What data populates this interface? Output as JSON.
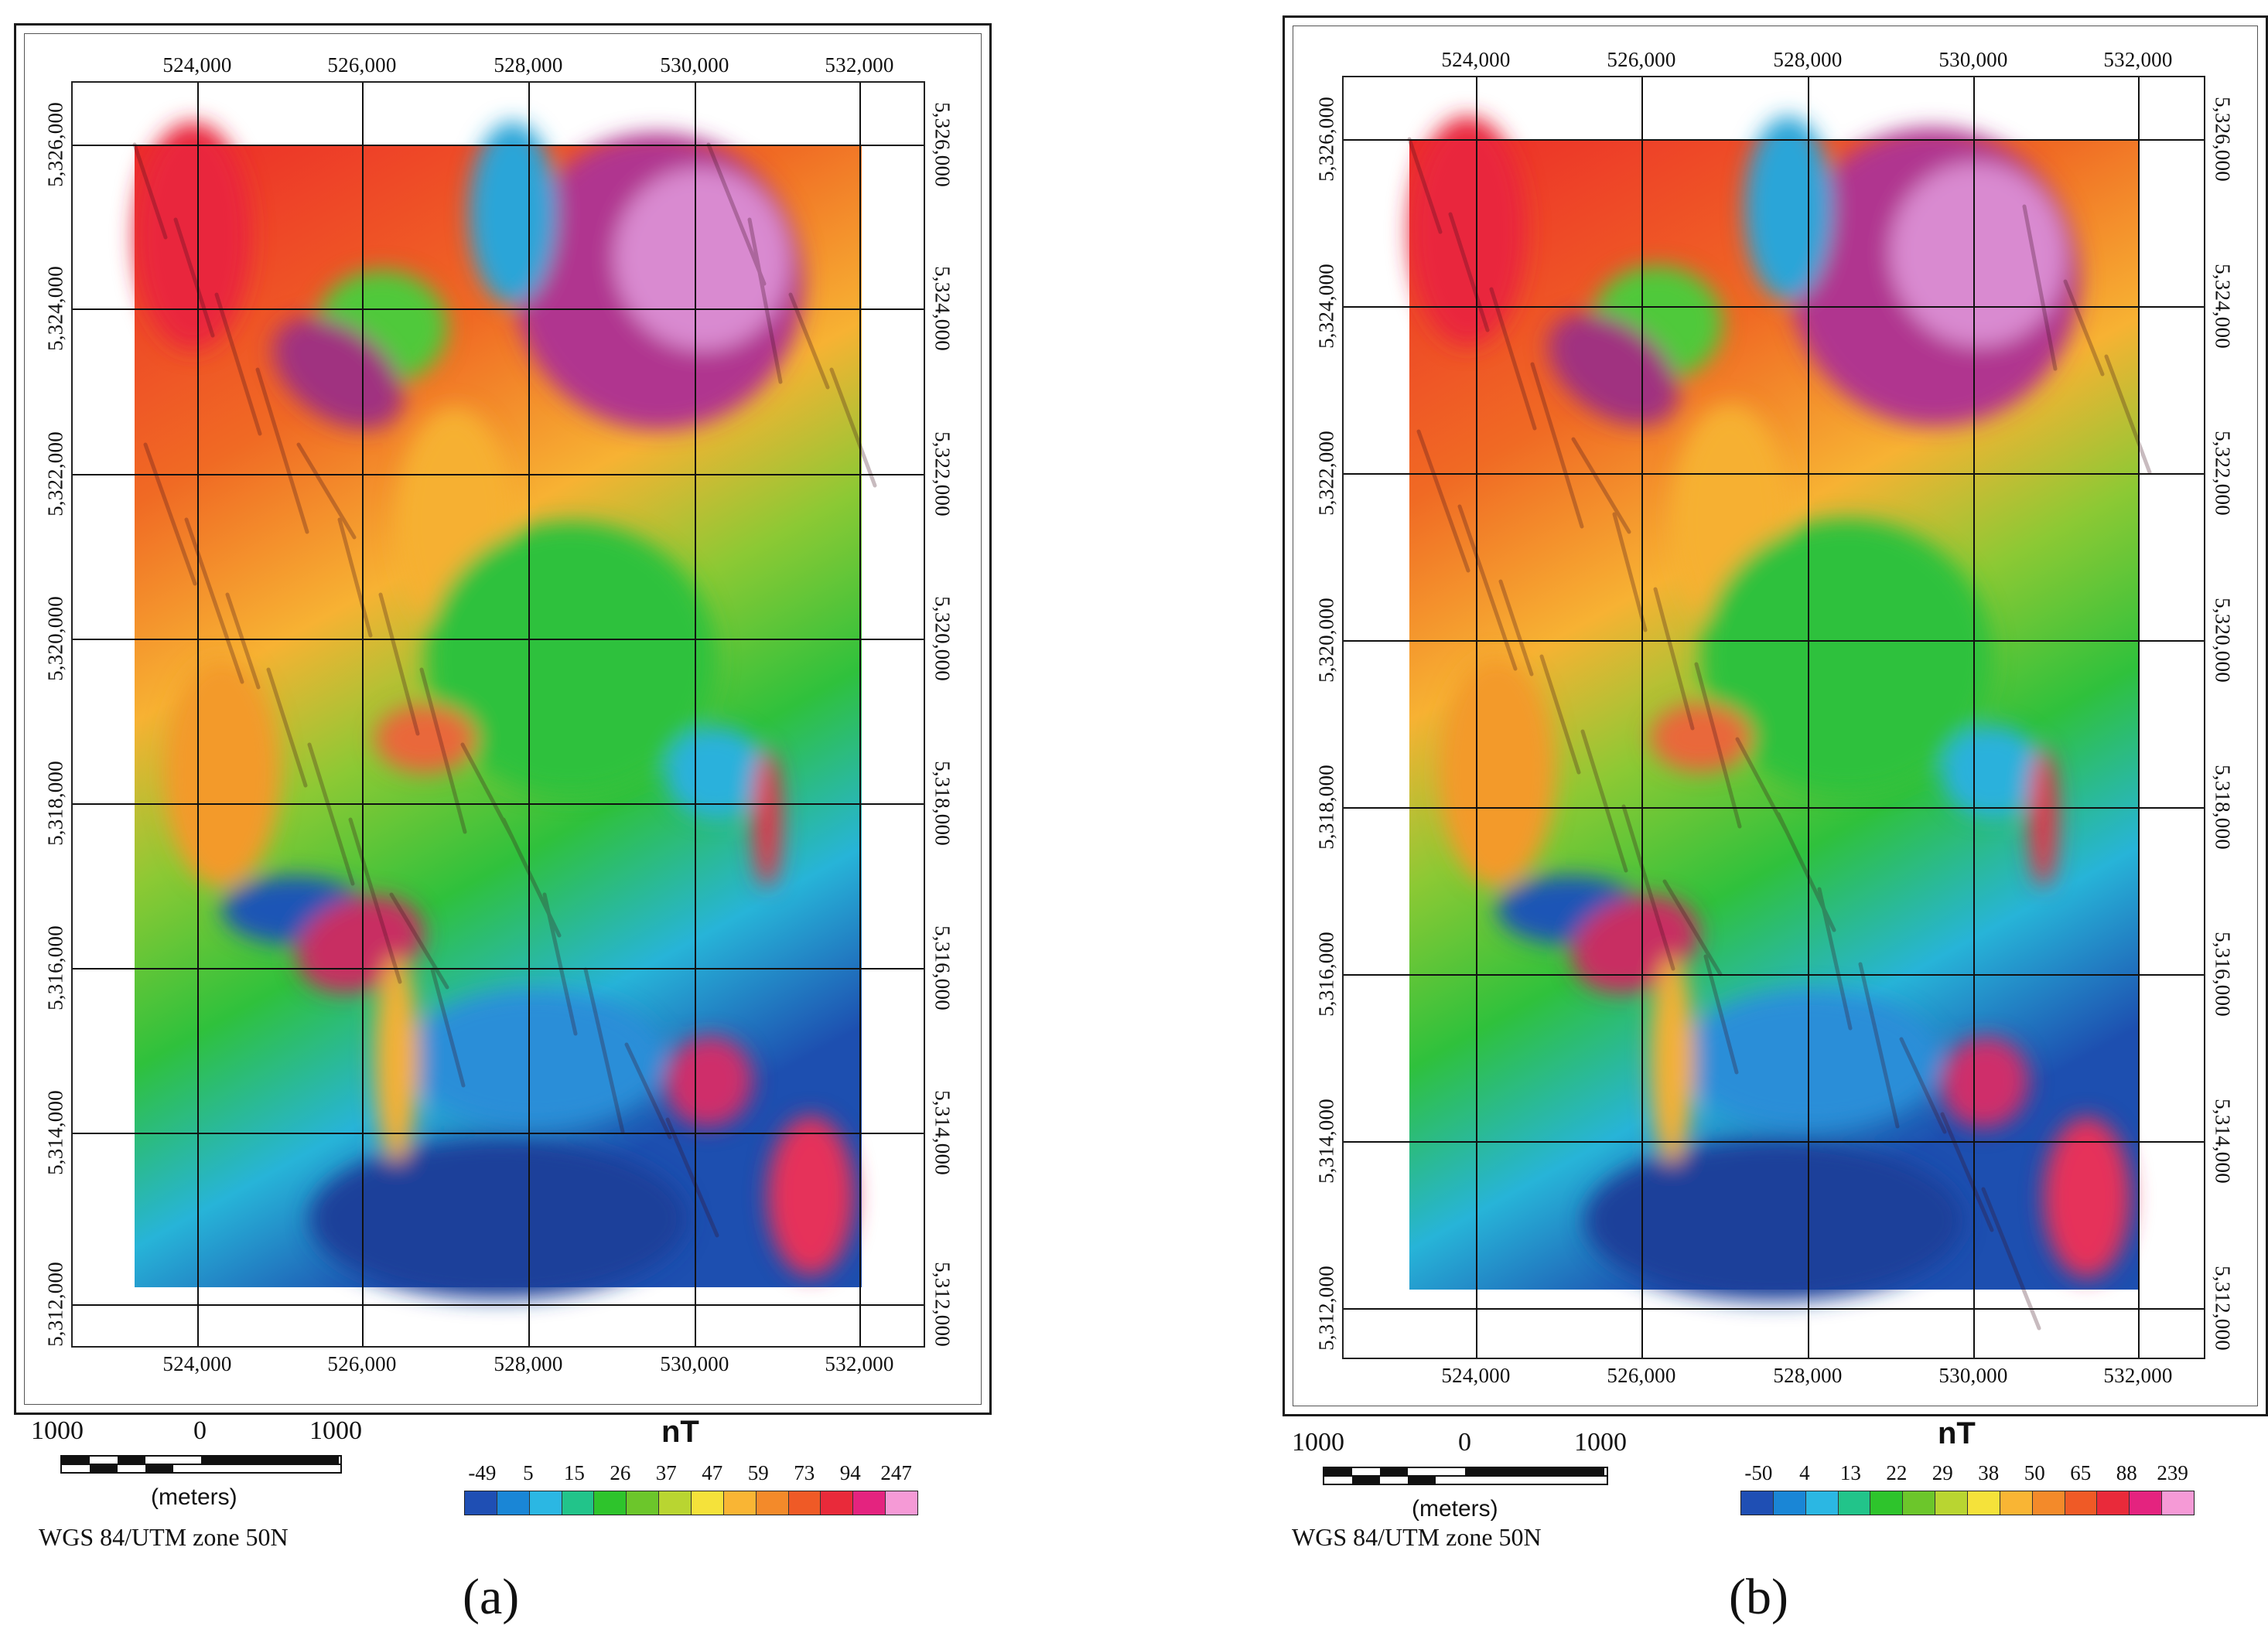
{
  "panels": [
    {
      "id": "a",
      "letter": "(a)",
      "grid_x_labels": [
        "524,000",
        "526,000",
        "528,000",
        "530,000",
        "532,000"
      ],
      "grid_y_labels": [
        "5,326,000",
        "5,324,000",
        "5,322,000",
        "5,320,000",
        "5,318,000",
        "5,316,000",
        "5,314,000",
        "5,312,000"
      ],
      "scale": {
        "left": "1000",
        "mid": "0",
        "right": "1000",
        "unit": "(meters)"
      },
      "datum": "WGS 84/UTM zone 50N",
      "colorbar": {
        "title": "nT",
        "labels": [
          "-49",
          "5",
          "15",
          "26",
          "37",
          "47",
          "59",
          "73",
          "94",
          "247"
        ],
        "colors": [
          "#1f4fb4",
          "#1a86d6",
          "#2bb7e3",
          "#22c48a",
          "#2ec42c",
          "#6cc62b",
          "#b9d531",
          "#f5e23a",
          "#f9b534",
          "#f38a2a",
          "#ef5a26",
          "#e92a3a",
          "#e4237f",
          "#f59ad6"
        ]
      }
    },
    {
      "id": "b",
      "letter": "(b)",
      "grid_x_labels": [
        "524,000",
        "526,000",
        "528,000",
        "530,000",
        "532,000"
      ],
      "grid_y_labels": [
        "5,326,000",
        "5,324,000",
        "5,322,000",
        "5,320,000",
        "5,318,000",
        "5,316,000",
        "5,314,000",
        "5,312,000"
      ],
      "scale": {
        "left": "1000",
        "mid": "0",
        "right": "1000",
        "unit": "(meters)"
      },
      "datum": "WGS 84/UTM zone 50N",
      "colorbar": {
        "title": "nT",
        "labels": [
          "-50",
          "4",
          "13",
          "22",
          "29",
          "38",
          "50",
          "65",
          "88",
          "239"
        ],
        "colors": [
          "#1f4fb4",
          "#1a86d6",
          "#2bb7e3",
          "#22c48a",
          "#2ec42c",
          "#6cc62b",
          "#b9d531",
          "#f5e23a",
          "#f9b534",
          "#f38a2a",
          "#ef5a26",
          "#e92a3a",
          "#e4237f",
          "#f59ad6"
        ]
      }
    }
  ]
}
